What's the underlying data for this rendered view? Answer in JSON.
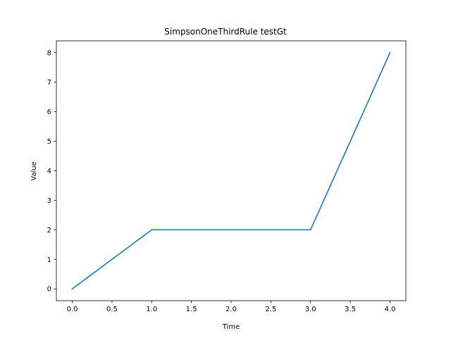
{
  "chart_data": {
    "type": "line",
    "title": "SimpsonOneThirdRule testGt",
    "xlabel": "Time",
    "ylabel": "Value",
    "xlim": [
      -0.2,
      4.2
    ],
    "ylim": [
      -0.4,
      8.4
    ],
    "xticks": [
      0.0,
      0.5,
      1.0,
      1.5,
      2.0,
      2.5,
      3.0,
      3.5,
      4.0
    ],
    "xtick_labels": [
      "0.0",
      "0.5",
      "1.0",
      "1.5",
      "2.0",
      "2.5",
      "3.0",
      "3.5",
      "4.0"
    ],
    "yticks": [
      0,
      1,
      2,
      3,
      4,
      5,
      6,
      7,
      8
    ],
    "ytick_labels": [
      "0",
      "1",
      "2",
      "3",
      "4",
      "5",
      "6",
      "7",
      "8"
    ],
    "grid": false,
    "series": [
      {
        "x": [
          0,
          1,
          2,
          3,
          4
        ],
        "values": [
          0,
          2,
          2,
          2,
          8
        ],
        "color": "#1f77b4"
      }
    ]
  }
}
